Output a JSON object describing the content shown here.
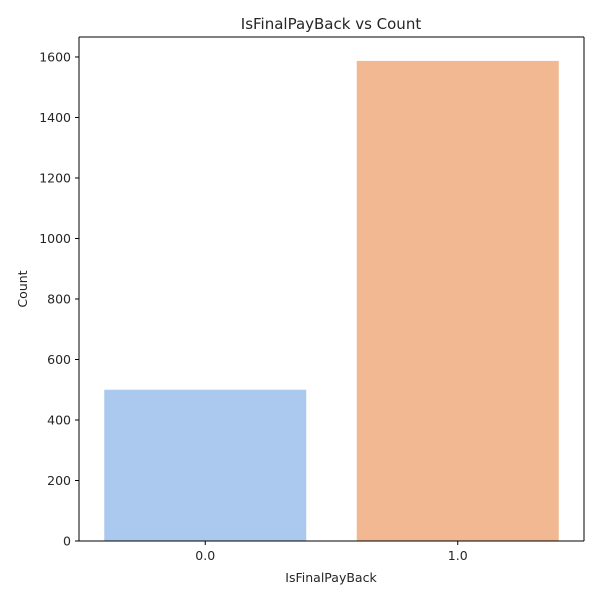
{
  "chart_data": {
    "type": "bar",
    "title": "IsFinalPayBack vs Count",
    "xlabel": "IsFinalPayBack",
    "ylabel": "Count",
    "categories": [
      "0.0",
      "1.0"
    ],
    "values": [
      500,
      1587
    ],
    "colors": [
      "#abc9ee",
      "#f1b892"
    ],
    "ylim": [
      0,
      1666
    ],
    "yticks": [
      0,
      200,
      400,
      600,
      800,
      1000,
      1200,
      1400,
      1600
    ],
    "grid": false,
    "legend": "none"
  }
}
